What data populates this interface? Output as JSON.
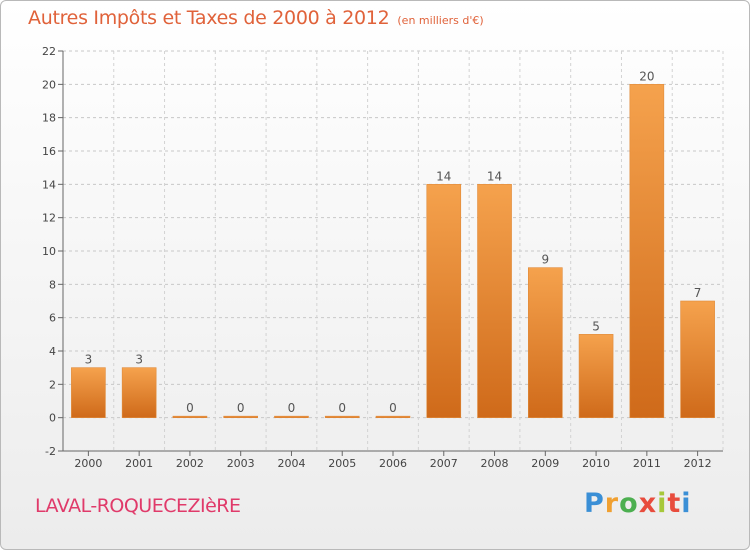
{
  "header": {
    "title": "Autres Impôts et Taxes de 2000 à 2012",
    "unit": "(en milliers d'€)"
  },
  "footer": {
    "commune": "LAVAL-ROQUECEZIèRE",
    "brand": [
      "P",
      "r",
      "o",
      "x",
      "i",
      "t",
      "i"
    ]
  },
  "colors": {
    "bar_light": "#f5a24d",
    "bar_dark": "#cf6a1a",
    "title": "#e0623a",
    "commune": "#e03a6a"
  },
  "chart_data": {
    "type": "bar",
    "categories": [
      "2000",
      "2001",
      "2002",
      "2003",
      "2004",
      "2005",
      "2006",
      "2007",
      "2008",
      "2009",
      "2010",
      "2011",
      "2012"
    ],
    "values": [
      3,
      3,
      0,
      0,
      0,
      0,
      0,
      14,
      14,
      9,
      5,
      20,
      7
    ],
    "title": "Autres Impôts et Taxes de 2000 à 2012",
    "subtitle": "(en milliers d'€)",
    "ylim": [
      -2,
      22
    ],
    "yticks": [
      -2,
      0,
      2,
      4,
      6,
      8,
      10,
      12,
      14,
      16,
      18,
      20,
      22
    ],
    "grid": true,
    "data_labels": true
  }
}
